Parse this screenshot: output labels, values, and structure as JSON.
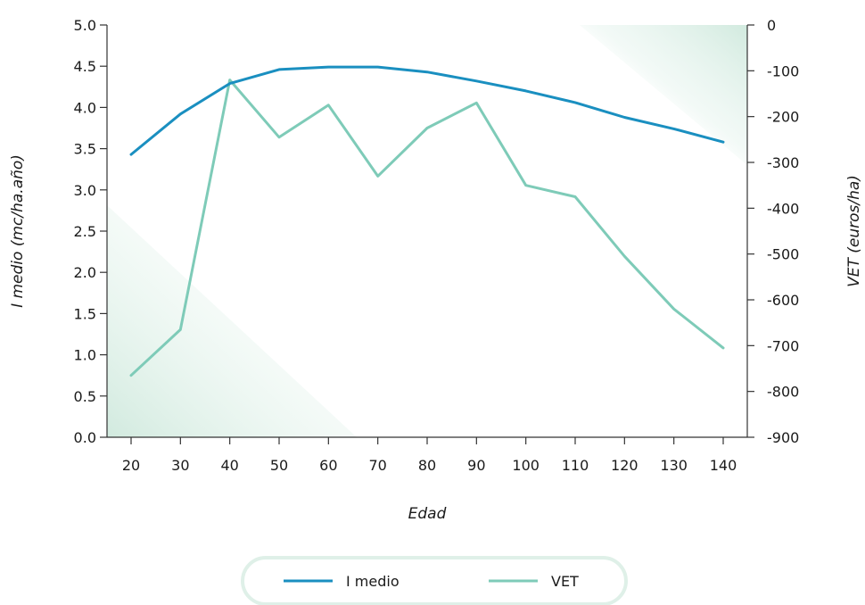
{
  "chart_data": {
    "type": "line",
    "x": [
      20,
      30,
      40,
      50,
      60,
      70,
      80,
      90,
      100,
      110,
      120,
      130,
      140
    ],
    "xlabel": "Edad",
    "x_ticks": [
      "20",
      "30",
      "40",
      "50",
      "60",
      "70",
      "80",
      "90",
      "100",
      "110",
      "120",
      "130",
      "140"
    ],
    "ylabel_left": "I medio (mc/ha.año)",
    "ylabel_right": "VET (euros/ha)",
    "ylim_left": [
      0,
      5
    ],
    "ylim_right": [
      -900,
      0
    ],
    "y_ticks_left": [
      "0.0",
      "0.5",
      "1.0",
      "1.5",
      "2.0",
      "2.5",
      "3.0",
      "3.5",
      "4.0",
      "4.5",
      "5.0"
    ],
    "y_ticks_right": [
      "-900",
      "-800",
      "-700",
      "-600",
      "-500",
      "-400",
      "-300",
      "-200",
      "-100",
      "0"
    ],
    "series": [
      {
        "name": "I medio",
        "axis": "left",
        "color": "#1a8fc0",
        "values": [
          3.43,
          3.92,
          4.29,
          4.46,
          4.49,
          4.49,
          4.43,
          4.32,
          4.2,
          4.06,
          3.88,
          3.74,
          3.58
        ]
      },
      {
        "name": "VET",
        "axis": "right",
        "color": "#7ecbb8",
        "values": [
          -765,
          -665,
          -120,
          -245,
          -175,
          -330,
          -225,
          -170,
          -350,
          -375,
          -505,
          -620,
          -705
        ]
      }
    ],
    "grid": false,
    "legend_position": "bottom"
  }
}
